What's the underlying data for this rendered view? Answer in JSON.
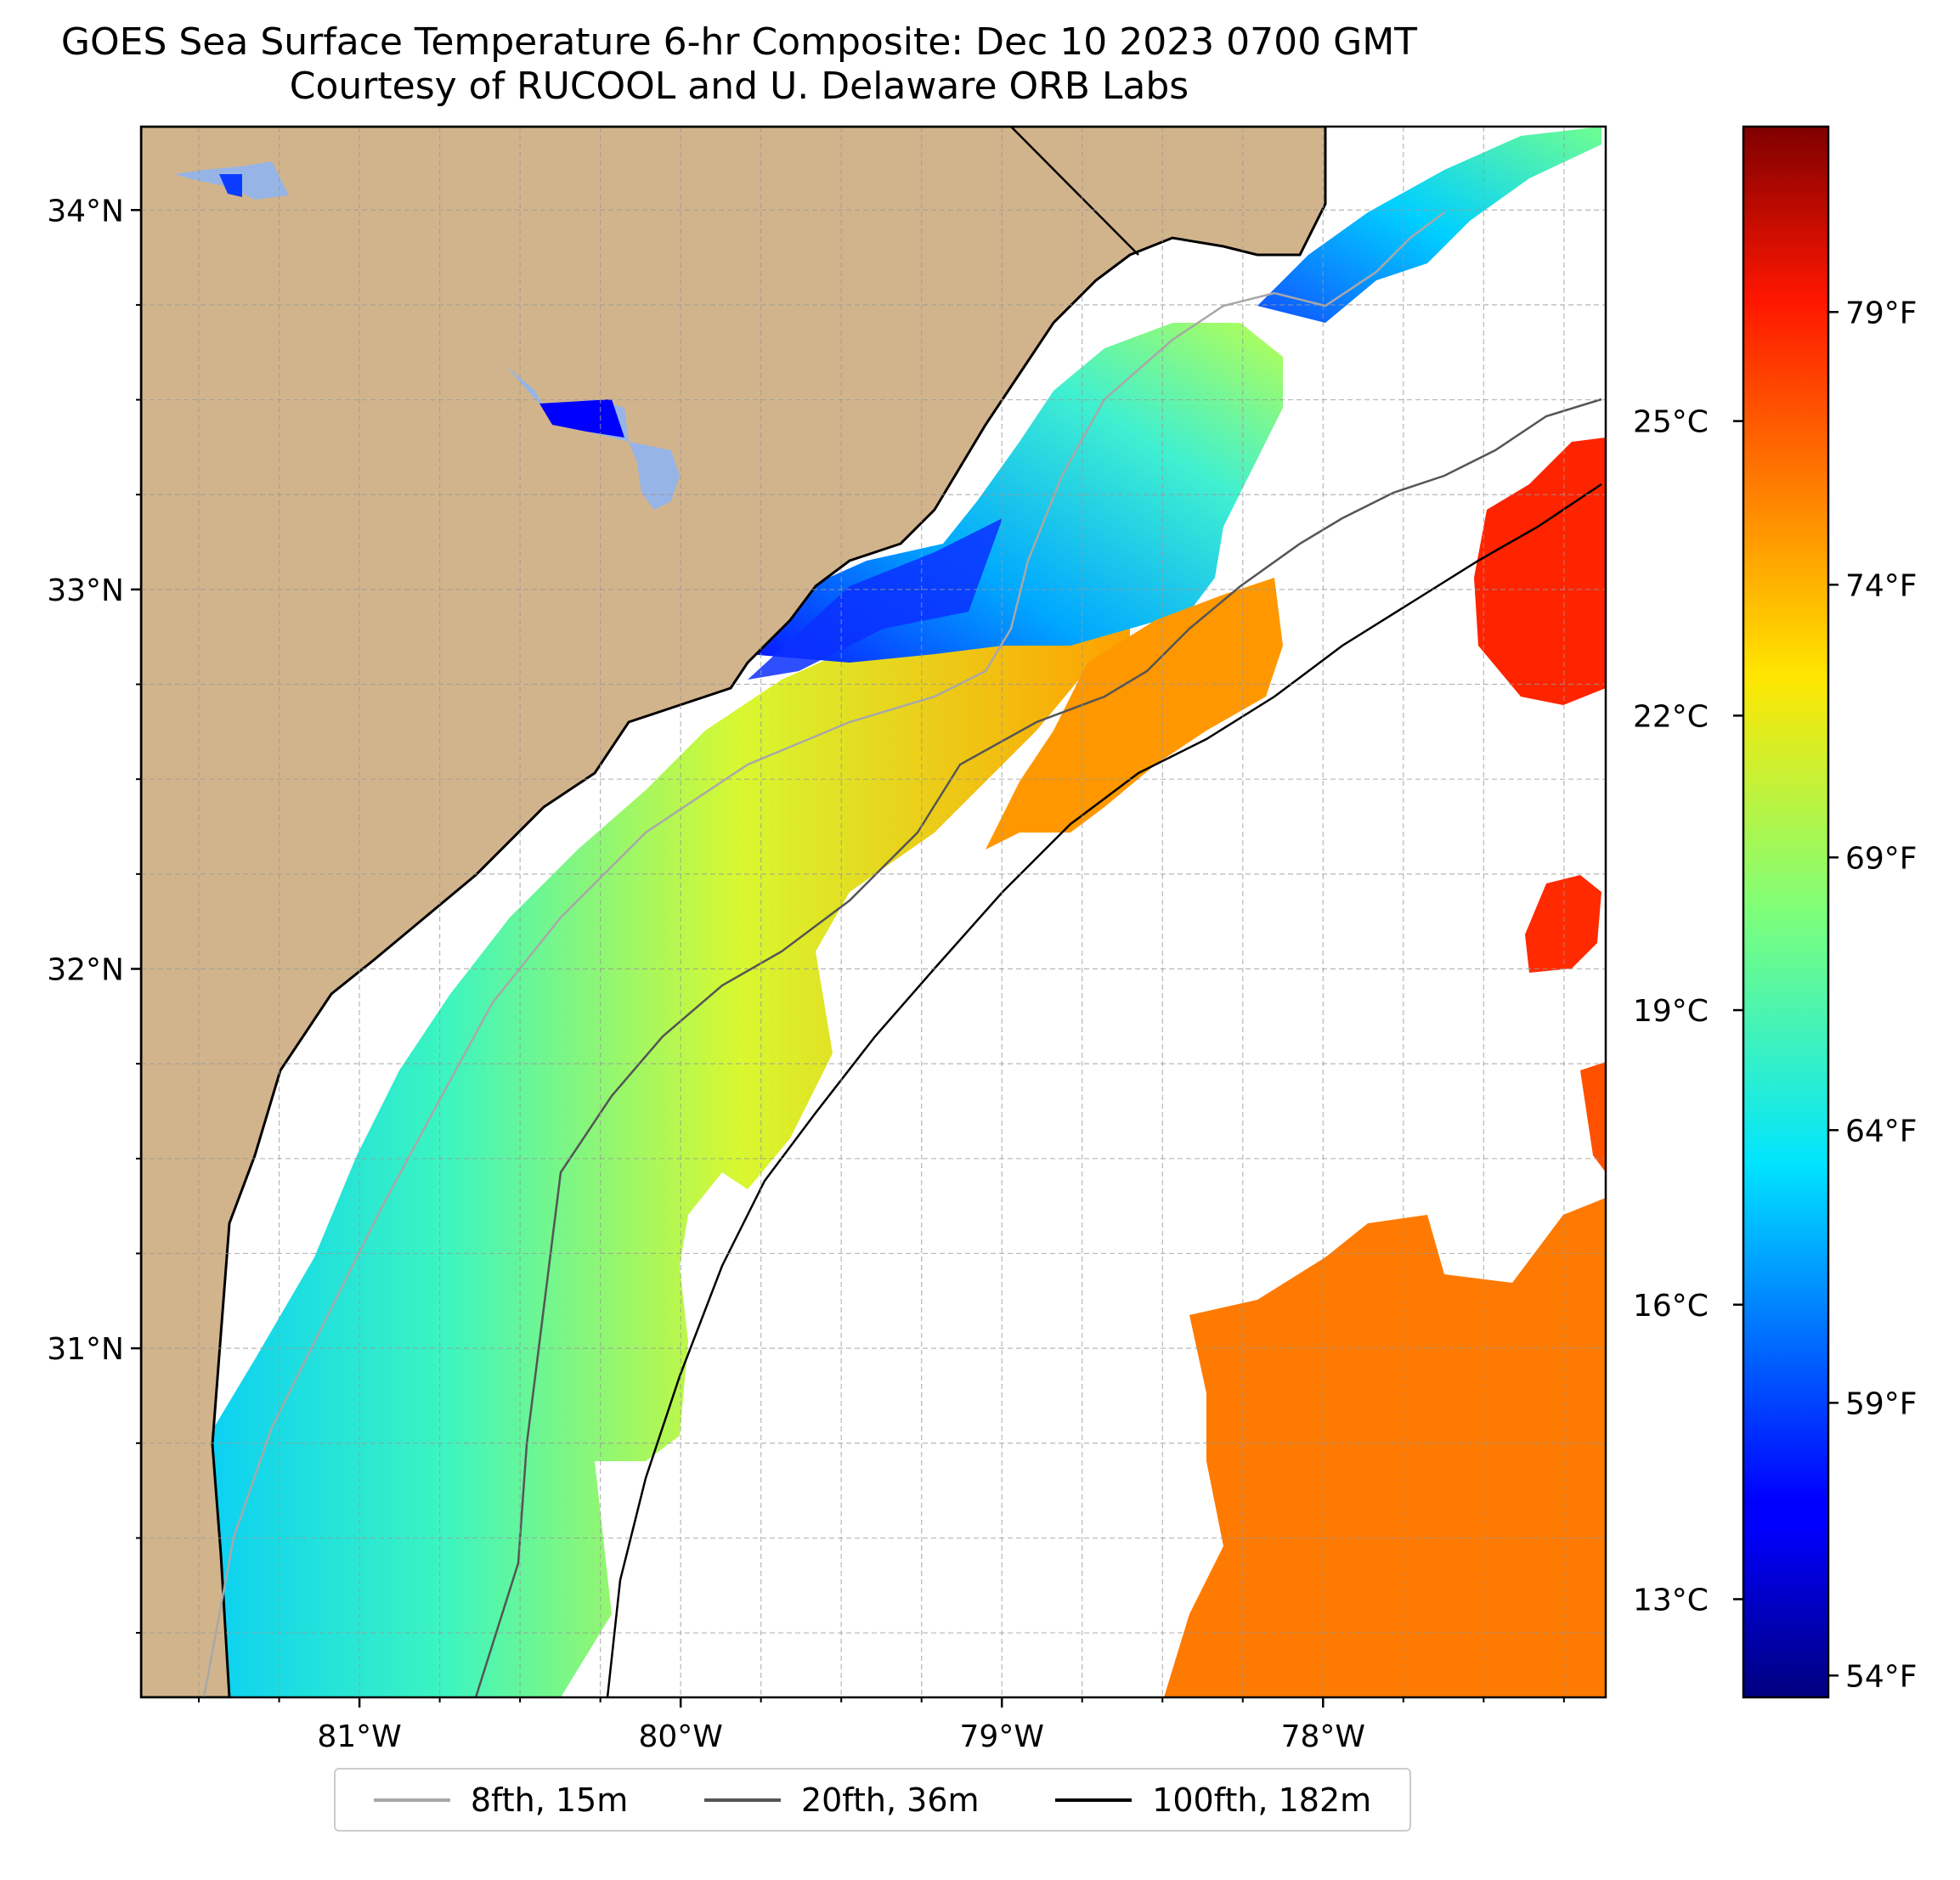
{
  "title": {
    "line1": "GOES Sea Surface Temperature 6-hr Composite: Dec 10 2023 0700 GMT",
    "line2": "Courtesy of RUCOOL and U. Delaware ORB Labs"
  },
  "map": {
    "lon_range": [
      -81.68,
      -77.12
    ],
    "lat_range": [
      30.08,
      34.22
    ],
    "lat_ticks": [
      {
        "value": 34,
        "label": "34°N"
      },
      {
        "value": 33,
        "label": "33°N"
      },
      {
        "value": 32,
        "label": "32°N"
      },
      {
        "value": 31,
        "label": "31°N"
      }
    ],
    "lon_ticks": [
      {
        "value": -81,
        "label": "81°W"
      },
      {
        "value": -80,
        "label": "80°W"
      },
      {
        "value": -79,
        "label": "79°W"
      },
      {
        "value": -78,
        "label": "78°W"
      }
    ],
    "land_color": "#d2b48c",
    "grid": true
  },
  "colorbar": {
    "colormap": "jet",
    "range_f": [
      53.6,
      82.4
    ],
    "celsius_ticks": [
      {
        "value": 25,
        "label": "25°C"
      },
      {
        "value": 22,
        "label": "22°C"
      },
      {
        "value": 19,
        "label": "19°C"
      },
      {
        "value": 16,
        "label": "16°C"
      },
      {
        "value": 13,
        "label": "13°C"
      }
    ],
    "fahrenheit_ticks": [
      {
        "value": 79,
        "label": "79°F"
      },
      {
        "value": 74,
        "label": "74°F"
      },
      {
        "value": 69,
        "label": "69°F"
      },
      {
        "value": 64,
        "label": "64°F"
      },
      {
        "value": 59,
        "label": "59°F"
      },
      {
        "value": 54,
        "label": "54°F"
      }
    ]
  },
  "legend": [
    {
      "label": "8fth, 15m",
      "color": "#a8a8a8"
    },
    {
      "label": "20fth, 36m",
      "color": "#555555"
    },
    {
      "label": "100fth, 182m",
      "color": "#000000"
    }
  ]
}
